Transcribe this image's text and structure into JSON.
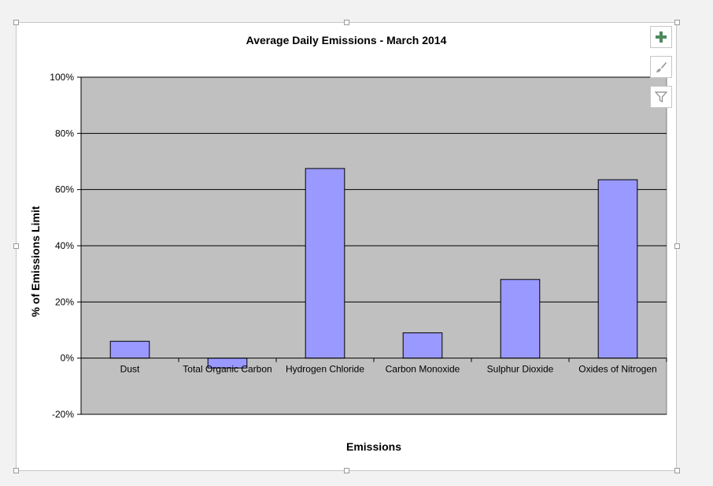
{
  "chart_data": {
    "type": "bar",
    "title": "Average Daily Emissions - March 2014",
    "xlabel": "Emissions",
    "ylabel": "% of Emissions Limit",
    "categories": [
      "Dust",
      "Total Organic Carbon",
      "Hydrogen Chloride",
      "Carbon Monoxide",
      "Sulphur Dioxide",
      "Oxides of Nitrogen"
    ],
    "values": [
      0.06,
      -0.035,
      0.675,
      0.09,
      0.28,
      0.635
    ],
    "ylim": [
      -0.2,
      1.0
    ],
    "yticks": [
      -0.2,
      0,
      0.2,
      0.4,
      0.6,
      0.8,
      1.0
    ],
    "ytick_labels": [
      "-20%",
      "0%",
      "20%",
      "40%",
      "60%",
      "80%",
      "100%"
    ],
    "grid": true,
    "legend": "none",
    "bar_color": "#9999ff",
    "plot_background": "#c0c0c0"
  },
  "toolbar": {
    "items": [
      {
        "icon": "plus-icon"
      },
      {
        "icon": "brush-icon"
      },
      {
        "icon": "filter-icon"
      }
    ]
  }
}
